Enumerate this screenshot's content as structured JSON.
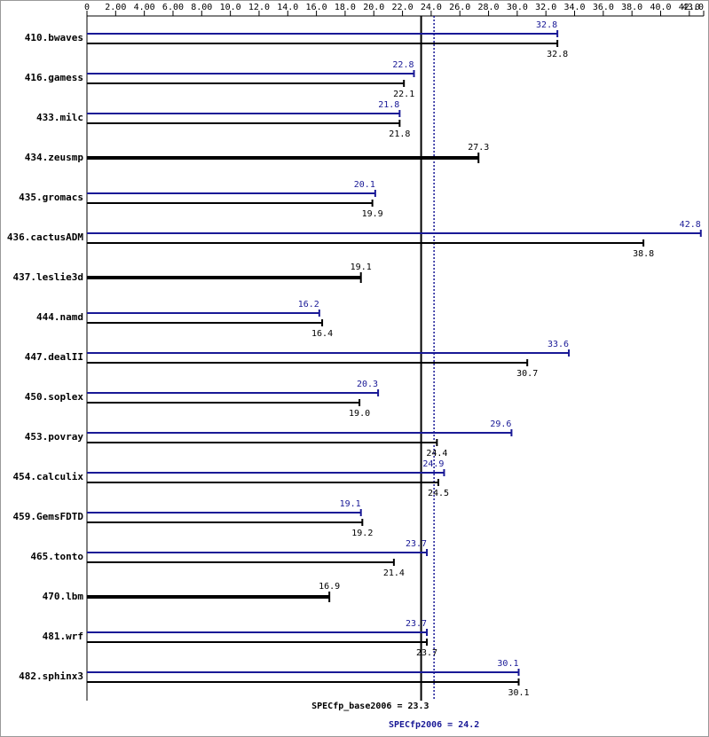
{
  "chart_data": {
    "type": "hbar",
    "categories": [
      "410.bwaves",
      "416.gamess",
      "433.milc",
      "434.zeusmp",
      "435.gromacs",
      "436.cactusADM",
      "437.leslie3d",
      "444.namd",
      "447.dealII",
      "450.soplex",
      "453.povray",
      "454.calculix",
      "459.GemsFDTD",
      "465.tonto",
      "470.lbm",
      "481.wrf",
      "482.sphinx3"
    ],
    "series": [
      {
        "color": "#191996",
        "values": [
          32.8,
          22.8,
          21.8,
          null,
          20.1,
          42.8,
          null,
          16.2,
          33.6,
          20.3,
          29.6,
          24.9,
          19.1,
          23.7,
          null,
          23.7,
          30.1
        ]
      },
      {
        "color": "#000000",
        "values": [
          32.8,
          22.1,
          21.8,
          27.3,
          19.9,
          38.8,
          19.1,
          16.4,
          30.7,
          19,
          24.4,
          24.5,
          19.2,
          21.4,
          16.9,
          23.7,
          30.1
        ],
        "value_labels": [
          "32.8",
          "22.1",
          "21.8",
          "27.3",
          "19.9",
          "38.8",
          "19.1",
          "16.4",
          "30.7",
          "19.0",
          "24.4",
          "24.5",
          "19.2",
          "21.4",
          "16.9",
          "23.7",
          "30.1"
        ]
      }
    ],
    "xlim": [
      0,
      43
    ],
    "xticks": [
      0,
      {
        "value": 2,
        "label": "2.00"
      },
      {
        "value": 4,
        "label": "4.00"
      },
      {
        "value": 6,
        "label": "6.00"
      },
      {
        "value": 8,
        "label": "8.00"
      },
      {
        "value": 10,
        "label": "10.0"
      },
      {
        "value": 12,
        "label": "12.0"
      },
      {
        "value": 14,
        "label": "14.0"
      },
      {
        "value": 16,
        "label": "16.0"
      },
      {
        "value": 18,
        "label": "18.0"
      },
      {
        "value": 20,
        "label": "20.0"
      },
      {
        "value": 22,
        "label": "22.0"
      },
      {
        "value": 24,
        "label": "24.0"
      },
      {
        "value": 26,
        "label": "26.0"
      },
      {
        "value": 28,
        "label": "28.0"
      },
      {
        "value": 30,
        "label": "30.0"
      },
      {
        "value": 32,
        "label": "32.0"
      },
      {
        "value": 34,
        "label": "34.0"
      },
      {
        "value": 36,
        "label": "36.0"
      },
      {
        "value": 38,
        "label": "38.0"
      },
      {
        "value": 40,
        "label": "40.0"
      },
      {
        "value": 42,
        "label": "42.0"
      },
      {
        "value": 43,
        "label": "43.0"
      }
    ],
    "reference_lines": [
      {
        "label": "SPECfp_base2006 = 23.3",
        "value": 23.3,
        "color": "#000000",
        "style": "solid"
      },
      {
        "label": "SPECfp2006 = 24.2",
        "value": 24.2,
        "color": "#191996",
        "style": "dotted"
      }
    ]
  }
}
